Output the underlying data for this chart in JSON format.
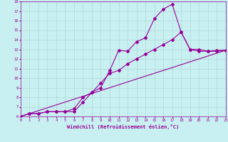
{
  "xlabel": "Windchill (Refroidissement éolien,°C)",
  "background_color": "#c8f0f0",
  "line_color": "#990099",
  "grid_color": "#b0d8d8",
  "xmin": 0,
  "xmax": 23,
  "ymin": 6,
  "ymax": 18,
  "line1_x": [
    0,
    1,
    2,
    3,
    4,
    5,
    6,
    7,
    8,
    9,
    10,
    11,
    12,
    13,
    14,
    15,
    16,
    17,
    18,
    19,
    20,
    21,
    22,
    23
  ],
  "line1_y": [
    6.0,
    6.3,
    6.3,
    6.5,
    6.5,
    6.5,
    6.5,
    7.5,
    8.5,
    9.0,
    10.8,
    12.9,
    12.8,
    13.8,
    14.2,
    16.2,
    17.2,
    17.7,
    14.8,
    13.0,
    13.0,
    12.8,
    12.8,
    12.9
  ],
  "line2_x": [
    0,
    1,
    2,
    3,
    4,
    5,
    6,
    7,
    8,
    9,
    10,
    11,
    12,
    13,
    14,
    15,
    16,
    17,
    18,
    19,
    20,
    21,
    22,
    23
  ],
  "line2_y": [
    6.0,
    6.3,
    6.3,
    6.5,
    6.5,
    6.5,
    6.8,
    8.0,
    8.5,
    9.5,
    10.5,
    10.8,
    11.5,
    12.0,
    12.5,
    13.0,
    13.5,
    14.0,
    14.8,
    13.0,
    12.8,
    12.8,
    12.9,
    12.9
  ],
  "line3_x": [
    0,
    23
  ],
  "line3_y": [
    6.0,
    12.9
  ],
  "marker": "D",
  "markersize": 2.0,
  "linewidth": 0.8,
  "tick_fontsize": 4.0,
  "xlabel_fontsize": 5.0
}
